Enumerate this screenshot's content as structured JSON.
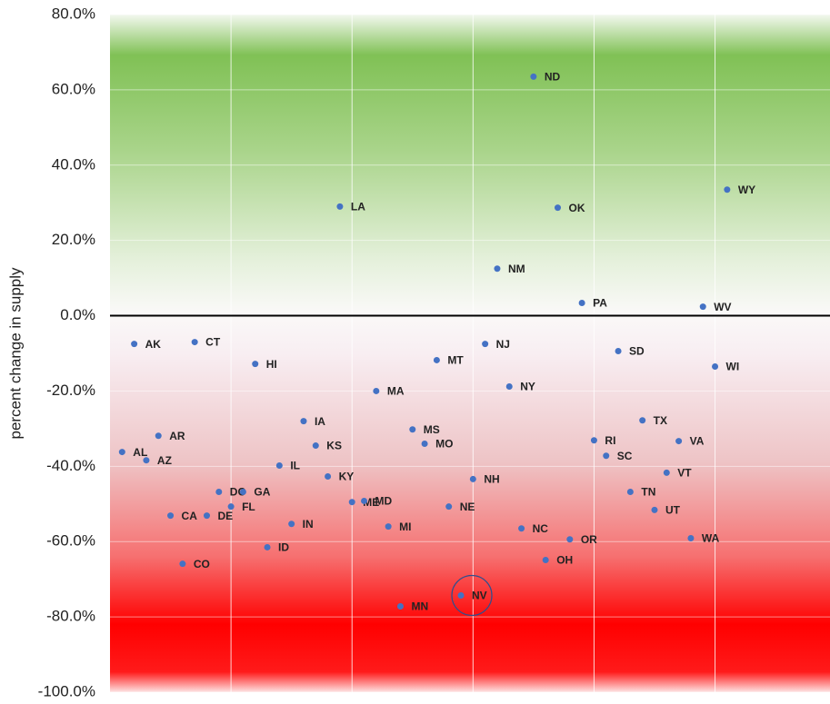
{
  "chart_data": {
    "type": "scatter",
    "y_label": "percent change in supply",
    "color": "#4472c4",
    "labels": [
      "AL",
      "AK",
      "AZ",
      "AR",
      "CA",
      "CO",
      "CT",
      "DE",
      "DC",
      "FL",
      "GA",
      "HI",
      "ID",
      "IL",
      "IN",
      "IA",
      "KS",
      "KY",
      "LA",
      "ME",
      "MD",
      "MA",
      "MI",
      "MN",
      "MS",
      "MO",
      "MT",
      "NE",
      "NV",
      "NH",
      "NJ",
      "NM",
      "NY",
      "NC",
      "ND",
      "OH",
      "OK",
      "OR",
      "PA",
      "RI",
      "SC",
      "SD",
      "TN",
      "TX",
      "UT",
      "VT",
      "VA",
      "WA",
      "WV",
      "WI",
      "WY"
    ],
    "x": [
      1,
      2,
      3,
      4,
      5,
      6,
      7,
      8,
      9,
      10,
      11,
      12,
      13,
      14,
      15,
      16,
      17,
      18,
      19,
      20,
      21,
      22,
      23,
      24,
      25,
      26,
      27,
      28,
      29,
      30,
      31,
      32,
      33,
      34,
      35,
      36,
      37,
      38,
      39,
      40,
      41,
      42,
      43,
      44,
      45,
      46,
      47,
      48,
      49,
      50,
      51
    ],
    "values": [
      -36.2,
      -7.5,
      -38.4,
      -31.9,
      -53.1,
      -65.9,
      -7.0,
      -53.1,
      -46.8,
      -50.7,
      -46.8,
      -12.8,
      -61.5,
      -39.8,
      -55.3,
      -28.0,
      -34.5,
      -42.7,
      29.0,
      -49.5,
      -49.2,
      -20.0,
      -56.0,
      -77.2,
      -30.2,
      -34.0,
      -11.8,
      -50.7,
      -74.3,
      -43.4,
      -7.5,
      12.5,
      -18.8,
      -56.5,
      63.5,
      -64.9,
      28.7,
      -59.4,
      3.4,
      -33.1,
      -37.2,
      -9.4,
      -46.8,
      -27.8,
      -51.6,
      -41.7,
      -33.3,
      -59.1,
      2.4,
      -13.5,
      33.5
    ],
    "highlight": "NV",
    "xlim": [
      0,
      59.5
    ],
    "xticks": [
      10,
      20,
      30,
      40,
      50
    ],
    "ylim": [
      -100,
      80
    ],
    "yticks": [
      {
        "value": -100,
        "label": "-100.0%"
      },
      {
        "value": -80,
        "label": "-80.0%"
      },
      {
        "value": -60,
        "label": "-60.0%"
      },
      {
        "value": -40,
        "label": "-40.0%"
      },
      {
        "value": -20,
        "label": "-20.0%"
      },
      {
        "value": 0,
        "label": "0.0%"
      },
      {
        "value": 20,
        "label": "20.0%"
      },
      {
        "value": 40,
        "label": "40.0%"
      },
      {
        "value": 60,
        "label": "60.0%"
      },
      {
        "value": 80,
        "label": "80.0%"
      }
    ],
    "grid": true
  }
}
